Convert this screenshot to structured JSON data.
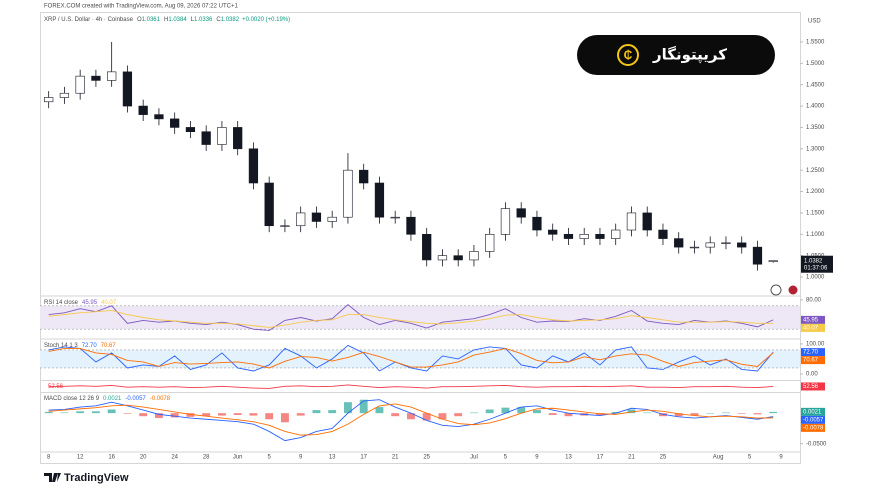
{
  "header": {
    "source": "FOREX.COM created with TradingView.com, Aug 09, 2026 07:22 UTC+1"
  },
  "watermark": "کریپتونگار",
  "footer": {
    "brand": "TradingView"
  },
  "chart_data": [
    {
      "type": "candlestick",
      "title": "XRP / U.S. Dollar · 4h · Coinbase",
      "ohlc_labels": [
        "O",
        "H",
        "L",
        "C"
      ],
      "change": "+0.0020 (+0.19%)",
      "currency": "USD",
      "countdown": "01:37:06",
      "color_up": "#ffffff",
      "color_down": "#131722",
      "x": [
        0,
        2,
        4,
        6,
        8,
        10,
        12,
        14,
        16,
        18,
        20,
        22,
        24,
        26,
        28,
        30,
        32,
        34,
        36,
        38,
        40,
        42,
        44,
        46,
        48,
        50,
        52,
        54,
        56,
        58,
        60,
        62,
        64,
        66,
        68,
        70,
        72,
        74,
        76,
        78,
        80,
        82,
        84,
        86,
        88,
        90,
        92
      ],
      "open": [
        1.41,
        1.42,
        1.43,
        1.47,
        1.46,
        1.48,
        1.4,
        1.38,
        1.37,
        1.35,
        1.34,
        1.31,
        1.35,
        1.3,
        1.22,
        1.12,
        1.12,
        1.15,
        1.13,
        1.14,
        1.25,
        1.22,
        1.14,
        1.14,
        1.1,
        1.04,
        1.05,
        1.04,
        1.06,
        1.1,
        1.16,
        1.14,
        1.11,
        1.1,
        1.09,
        1.1,
        1.09,
        1.11,
        1.15,
        1.11,
        1.09,
        1.07,
        1.07,
        1.08,
        1.08,
        1.07,
        1.0361
      ],
      "high": [
        1.435,
        1.445,
        1.485,
        1.485,
        1.55,
        1.495,
        1.415,
        1.395,
        1.385,
        1.365,
        1.355,
        1.365,
        1.365,
        1.315,
        1.235,
        1.135,
        1.165,
        1.165,
        1.155,
        1.29,
        1.265,
        1.235,
        1.155,
        1.155,
        1.115,
        1.065,
        1.065,
        1.075,
        1.115,
        1.175,
        1.175,
        1.155,
        1.125,
        1.115,
        1.115,
        1.115,
        1.125,
        1.165,
        1.165,
        1.125,
        1.105,
        1.085,
        1.095,
        1.095,
        1.095,
        1.085,
        1.0384
      ],
      "low": [
        1.395,
        1.405,
        1.415,
        1.445,
        1.445,
        1.385,
        1.365,
        1.355,
        1.335,
        1.325,
        1.295,
        1.295,
        1.285,
        1.205,
        1.105,
        1.105,
        1.105,
        1.115,
        1.115,
        1.125,
        1.205,
        1.125,
        1.125,
        1.085,
        1.025,
        1.025,
        1.025,
        1.025,
        1.045,
        1.085,
        1.125,
        1.095,
        1.085,
        1.075,
        1.075,
        1.075,
        1.075,
        1.095,
        1.095,
        1.075,
        1.055,
        1.055,
        1.055,
        1.065,
        1.055,
        1.015,
        1.0336
      ],
      "close": [
        1.42,
        1.43,
        1.47,
        1.46,
        1.48,
        1.4,
        1.38,
        1.37,
        1.35,
        1.34,
        1.31,
        1.35,
        1.3,
        1.22,
        1.12,
        1.12,
        1.15,
        1.13,
        1.14,
        1.25,
        1.22,
        1.14,
        1.14,
        1.1,
        1.04,
        1.05,
        1.04,
        1.06,
        1.1,
        1.16,
        1.14,
        1.11,
        1.1,
        1.09,
        1.1,
        1.09,
        1.11,
        1.15,
        1.11,
        1.09,
        1.07,
        1.07,
        1.08,
        1.08,
        1.07,
        1.03,
        1.0382
      ],
      "xlim": [
        -1.1,
        95.4
      ],
      "xticks": [
        {
          "value": 0,
          "label": "8"
        },
        {
          "value": 4,
          "label": "12"
        },
        {
          "value": 8,
          "label": "16"
        },
        {
          "value": 12,
          "label": "20"
        },
        {
          "value": 16,
          "label": "24"
        },
        {
          "value": 20,
          "label": "28"
        },
        {
          "value": 24,
          "label": "Jun"
        },
        {
          "value": 28,
          "label": "5"
        },
        {
          "value": 32,
          "label": "9"
        },
        {
          "value": 36,
          "label": "13"
        },
        {
          "value": 40,
          "label": "17"
        },
        {
          "value": 44,
          "label": "21"
        },
        {
          "value": 48,
          "label": "25"
        },
        {
          "value": 54,
          "label": "Jul"
        },
        {
          "value": 58,
          "label": "5"
        },
        {
          "value": 62,
          "label": "9"
        },
        {
          "value": 66,
          "label": "13"
        },
        {
          "value": 70,
          "label": "17"
        },
        {
          "value": 74,
          "label": "21"
        },
        {
          "value": 78,
          "label": "25"
        },
        {
          "value": 85,
          "label": "Aug"
        },
        {
          "value": 89,
          "label": "5"
        },
        {
          "value": 93,
          "label": "9"
        }
      ],
      "ylim": [
        0.958,
        1.606
      ],
      "yticks": [
        {
          "value": 1.0,
          "label": "1.0000"
        },
        {
          "value": 1.05,
          "label": "1.0500"
        },
        {
          "value": 1.1,
          "label": "1.1000"
        },
        {
          "value": 1.15,
          "label": "1.1500"
        },
        {
          "value": 1.2,
          "label": "1.2000"
        },
        {
          "value": 1.25,
          "label": "1.2500"
        },
        {
          "value": 1.3,
          "label": "1.3000"
        },
        {
          "value": 1.35,
          "label": "1.3500"
        },
        {
          "value": 1.4,
          "label": "1.4000"
        },
        {
          "value": 1.45,
          "label": "1.4500"
        },
        {
          "value": 1.5,
          "label": "1.5000"
        },
        {
          "value": 1.55,
          "label": "1.5500"
        }
      ]
    },
    {
      "type": "line",
      "title": "RSI 14 close",
      "band": [
        30,
        70
      ],
      "band_color": "#ede7f6",
      "ylim": [
        15,
        85
      ],
      "yticks": [
        {
          "value": 80,
          "label": "80.00"
        }
      ],
      "series": [
        {
          "color": "#7e57c2",
          "values": [
            55,
            58,
            65,
            60,
            70,
            40,
            45,
            42,
            44,
            40,
            38,
            42,
            38,
            30,
            28,
            45,
            50,
            44,
            48,
            72,
            50,
            38,
            45,
            40,
            32,
            42,
            45,
            48,
            55,
            65,
            50,
            42,
            44,
            43,
            48,
            45,
            52,
            62,
            44,
            40,
            38,
            45,
            42,
            44,
            40,
            34,
            45.95
          ]
        },
        {
          "color": "#f7c948",
          "values": [
            52,
            55,
            58,
            60,
            62,
            55,
            50,
            46,
            44,
            42,
            40,
            40,
            39,
            36,
            33,
            37,
            42,
            45,
            46,
            55,
            55,
            50,
            46,
            43,
            40,
            39,
            41,
            44,
            48,
            54,
            55,
            50,
            46,
            44,
            45,
            46,
            48,
            53,
            50,
            46,
            42,
            42,
            42,
            43,
            42,
            40,
            40.07
          ]
        }
      ]
    },
    {
      "type": "line",
      "title": "Stoch 14 1 3",
      "band": [
        20,
        80
      ],
      "band_color": "#e3f2fd",
      "ylim": [
        -20,
        113
      ],
      "yticks": [
        {
          "value": 100,
          "label": "100.00"
        },
        {
          "value": 0,
          "label": "0.00"
        }
      ],
      "series": [
        {
          "color": "#2962ff",
          "value_label": "72.70",
          "values": [
            80,
            90,
            85,
            40,
            70,
            20,
            30,
            25,
            60,
            15,
            30,
            70,
            20,
            10,
            30,
            85,
            60,
            20,
            50,
            95,
            70,
            10,
            40,
            20,
            10,
            60,
            50,
            80,
            90,
            85,
            30,
            20,
            60,
            40,
            70,
            30,
            80,
            90,
            20,
            15,
            40,
            60,
            30,
            50,
            15,
            10,
            72.7
          ]
        },
        {
          "color": "#ff6d00",
          "values": [
            75,
            85,
            85,
            70,
            65,
            45,
            40,
            25,
            38,
            33,
            35,
            38,
            40,
            33,
            20,
            42,
            58,
            55,
            43,
            55,
            72,
            58,
            40,
            23,
            23,
            30,
            40,
            63,
            73,
            85,
            68,
            45,
            37,
            40,
            57,
            47,
            60,
            67,
            63,
            42,
            25,
            38,
            43,
            47,
            32,
            25,
            70.67
          ]
        }
      ]
    },
    {
      "type": "line",
      "ylim": [
        40,
        65
      ],
      "series": [
        {
          "color": "#f23645",
          "values": [
            52,
            53,
            54,
            53,
            55,
            51,
            52,
            51,
            52,
            50,
            51,
            53,
            51,
            49,
            48,
            53,
            54,
            52,
            53,
            56,
            53,
            50,
            52,
            51,
            49,
            52,
            52,
            53,
            54,
            55,
            52,
            51,
            52,
            52,
            53,
            52,
            53,
            54,
            51,
            51,
            50,
            52,
            52,
            53,
            51,
            50,
            52.56
          ]
        }
      ]
    },
    {
      "type": "macd",
      "title": "MACD close 12 26 9",
      "ylim": [
        -0.062,
        0.033
      ],
      "yticks": [
        {
          "value": -0.05,
          "label": "-0.0500"
        }
      ],
      "series": [
        {
          "style": "columns",
          "color": "#26a69a",
          "negative_color": "#ef5350",
          "values": [
            0.002,
            0.001,
            0.003,
            0.003,
            0.006,
            -0.001,
            -0.005,
            -0.008,
            -0.007,
            -0.006,
            -0.005,
            -0.004,
            -0.003,
            -0.004,
            -0.01,
            -0.015,
            -0.004,
            0.005,
            0.005,
            0.018,
            0.022,
            0.01,
            -0.005,
            -0.01,
            -0.012,
            -0.01,
            -0.005,
            0.001,
            0.006,
            0.009,
            0.01,
            0.005,
            -0.003,
            -0.005,
            -0.004,
            -0.003,
            0.002,
            0.006,
            0.001,
            -0.005,
            -0.005,
            -0.004,
            0.0,
            0.001,
            -0.001,
            -0.002,
            0.0021
          ]
        },
        {
          "color": "#2962ff",
          "values": [
            0.005,
            0.006,
            0.01,
            0.012,
            0.018,
            0.012,
            0.005,
            -0.002,
            -0.005,
            -0.008,
            -0.01,
            -0.012,
            -0.014,
            -0.018,
            -0.03,
            -0.045,
            -0.04,
            -0.03,
            -0.025,
            0.0,
            0.02,
            0.022,
            0.01,
            0.0,
            -0.012,
            -0.02,
            -0.022,
            -0.018,
            -0.01,
            0.0,
            0.01,
            0.012,
            0.005,
            0.0,
            -0.002,
            -0.004,
            0.0,
            0.008,
            0.006,
            -0.002,
            -0.006,
            -0.008,
            -0.006,
            -0.004,
            -0.007,
            -0.01,
            -0.0057
          ]
        },
        {
          "color": "#ff6d00",
          "values": [
            0.003,
            0.005,
            0.007,
            0.009,
            0.012,
            0.013,
            0.01,
            0.006,
            0.002,
            -0.002,
            -0.005,
            -0.008,
            -0.011,
            -0.014,
            -0.02,
            -0.03,
            -0.036,
            -0.035,
            -0.03,
            -0.018,
            -0.002,
            0.012,
            0.015,
            0.01,
            0.0,
            -0.01,
            -0.017,
            -0.019,
            -0.016,
            -0.009,
            0.0,
            0.007,
            0.008,
            0.005,
            0.002,
            -0.001,
            -0.002,
            0.002,
            0.005,
            0.003,
            -0.001,
            -0.004,
            -0.006,
            -0.005,
            -0.006,
            -0.008,
            -0.0078
          ]
        }
      ]
    }
  ]
}
